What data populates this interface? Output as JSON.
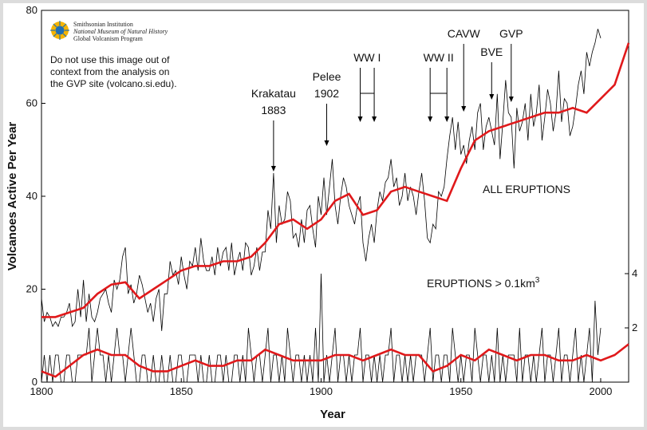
{
  "logo": {
    "line1": "Smithsonian Institution",
    "line2": "National Museum of Natural History",
    "line3": "Global Volcanism Program"
  },
  "disclaimer": [
    "Do not use this image out of",
    "context from the analysis on",
    "the GVP site (volcano.si.edu)."
  ],
  "chart_data": {
    "type": "line",
    "title": "",
    "xlabel": "Year",
    "ylabel": "Volcanoes Active Per Year",
    "xlim": [
      1800,
      2010
    ],
    "ylim": [
      0,
      80
    ],
    "y2lim": [
      0,
      8
    ],
    "xticks": [
      1800,
      1850,
      1900,
      1950,
      2000
    ],
    "yticks": [
      0,
      20,
      40,
      60,
      80
    ],
    "y2ticks": [
      2,
      4
    ],
    "grid": false,
    "colors": {
      "raw": "#000000",
      "smooth": "#e0191b"
    },
    "series_labels": {
      "all": "ALL ERUPTIONS",
      "large_prefix": "ERUPTIONS > 0.1km",
      "large_sup": "3"
    },
    "all_eruptions_smoothed": {
      "x": [
        1800,
        1805,
        1810,
        1815,
        1820,
        1825,
        1830,
        1835,
        1840,
        1845,
        1850,
        1855,
        1860,
        1865,
        1870,
        1875,
        1880,
        1885,
        1890,
        1895,
        1900,
        1905,
        1910,
        1915,
        1920,
        1925,
        1930,
        1935,
        1940,
        1945,
        1950,
        1955,
        1960,
        1965,
        1970,
        1975,
        1980,
        1985,
        1990,
        1995,
        2000,
        2005,
        2010
      ],
      "values": [
        14,
        14,
        15,
        16,
        19,
        21,
        21.5,
        18,
        20,
        22,
        24,
        25,
        25,
        26,
        26,
        27,
        30,
        34,
        35,
        33,
        35,
        39,
        40.5,
        36,
        37,
        41,
        42,
        41,
        40,
        39,
        46,
        52,
        54,
        55,
        56,
        57,
        58,
        58,
        59,
        58,
        61,
        64,
        73
      ]
    },
    "all_eruptions_annual": {
      "x0": 1800,
      "values": [
        18,
        13,
        15,
        14,
        12,
        13,
        12,
        14,
        14,
        15,
        17,
        12,
        13,
        20,
        14,
        22,
        13,
        19,
        14,
        13,
        15,
        18,
        19,
        20,
        17,
        15,
        22,
        20,
        22,
        27,
        29,
        19,
        21,
        17,
        19,
        23,
        21,
        18,
        15,
        17,
        13,
        18,
        20,
        11,
        19,
        19,
        26,
        23,
        24,
        21,
        27,
        23,
        20,
        26,
        25,
        29,
        24,
        31,
        26,
        24,
        24,
        27,
        23,
        29,
        25,
        28,
        29,
        24,
        30,
        23,
        26,
        28,
        24,
        30,
        29,
        23,
        25,
        29,
        24,
        28,
        28,
        37,
        33,
        45,
        30,
        38,
        34,
        35,
        41,
        39,
        31,
        32,
        29,
        35,
        30,
        37,
        38,
        33,
        29,
        40,
        36,
        44,
        36,
        42,
        48,
        38,
        34,
        40,
        44,
        42,
        38,
        36,
        34,
        38,
        40,
        30,
        26,
        31,
        34,
        30,
        37,
        41,
        39,
        43,
        44,
        48,
        42,
        44,
        38,
        40,
        45,
        39,
        42,
        40,
        36,
        41,
        45,
        39,
        31,
        30,
        34,
        33,
        41,
        40,
        42,
        48,
        53,
        57,
        50,
        56,
        49,
        51,
        47,
        52,
        55,
        50,
        58,
        60,
        50,
        55,
        57,
        54,
        51,
        62,
        48,
        56,
        65,
        58,
        57,
        46,
        59,
        54,
        56,
        60,
        52,
        62,
        55,
        58,
        64,
        52,
        57,
        63,
        60,
        54,
        58,
        67,
        56,
        61,
        60,
        53,
        55,
        59,
        64,
        67,
        62,
        71,
        68,
        71,
        73,
        76,
        74
      ]
    },
    "large_eruptions_smoothed": {
      "x": [
        1800,
        1805,
        1810,
        1815,
        1820,
        1825,
        1830,
        1835,
        1840,
        1845,
        1850,
        1855,
        1860,
        1865,
        1870,
        1875,
        1880,
        1885,
        1890,
        1895,
        1900,
        1905,
        1910,
        1915,
        1920,
        1925,
        1930,
        1935,
        1940,
        1945,
        1950,
        1955,
        1960,
        1965,
        1970,
        1975,
        1980,
        1985,
        1990,
        1995,
        2000,
        2005,
        2010
      ],
      "values": [
        0.2,
        0.1,
        0.3,
        0.5,
        0.6,
        0.5,
        0.5,
        0.3,
        0.2,
        0.2,
        0.3,
        0.4,
        0.3,
        0.3,
        0.4,
        0.4,
        0.6,
        0.5,
        0.4,
        0.4,
        0.4,
        0.5,
        0.5,
        0.4,
        0.5,
        0.6,
        0.5,
        0.5,
        0.2,
        0.3,
        0.5,
        0.4,
        0.6,
        0.5,
        0.4,
        0.5,
        0.5,
        0.4,
        0.4,
        0.5,
        0.4,
        0.5,
        0.7
      ]
    },
    "large_eruptions_annual": {
      "x0": 1800,
      "values": [
        0,
        1,
        0,
        1,
        0,
        1,
        1,
        0,
        0,
        1,
        1,
        0,
        0,
        1,
        1,
        1,
        1,
        2,
        0,
        1,
        2,
        1,
        1,
        0,
        1,
        0,
        1,
        2,
        1,
        1,
        0,
        1,
        2,
        1,
        0,
        0,
        1,
        1,
        0,
        0,
        1,
        0,
        0,
        1,
        0,
        0,
        1,
        0,
        0,
        1,
        1,
        0,
        0,
        1,
        1,
        1,
        0,
        1,
        0,
        0,
        1,
        0,
        0,
        1,
        1,
        0,
        1,
        0,
        0,
        1,
        1,
        0,
        1,
        0,
        2,
        1,
        0,
        1,
        1,
        0,
        1,
        2,
        0,
        1,
        1,
        0,
        1,
        0,
        2,
        1,
        0,
        1,
        1,
        0,
        1,
        0,
        1,
        0,
        2,
        0,
        4,
        0,
        1,
        0,
        1,
        2,
        0,
        1,
        1,
        0,
        1,
        0,
        1,
        1,
        2,
        0,
        1,
        1,
        0,
        1,
        0,
        1,
        0,
        1,
        1,
        2,
        0,
        1,
        1,
        0,
        1,
        0,
        1,
        0,
        1,
        1,
        1,
        0,
        1,
        2,
        0,
        1,
        1,
        0,
        1,
        1,
        0,
        2,
        1,
        0,
        1,
        0,
        1,
        1,
        0,
        2,
        1,
        0,
        1,
        1,
        0,
        1,
        0,
        2,
        0,
        1,
        0,
        1,
        1,
        1,
        0,
        2,
        0,
        1,
        1,
        0,
        1,
        0,
        1,
        2,
        0,
        1,
        1,
        0,
        1,
        2,
        0,
        1,
        1,
        0,
        1,
        2,
        0,
        1,
        0,
        1,
        2,
        0,
        3,
        1,
        2
      ]
    },
    "annotations": [
      {
        "line1": "Krakatau",
        "line2": "1883",
        "arrows": [
          1883
        ]
      },
      {
        "line1": "Pelee",
        "line2": "1902",
        "arrows": [
          1902
        ]
      },
      {
        "line1": "WW I",
        "line2": "",
        "arrows": [
          1914,
          1919
        ]
      },
      {
        "line1": "WW II",
        "line2": "",
        "arrows": [
          1939,
          1945
        ]
      },
      {
        "line1": "CAVW",
        "line2": "",
        "arrows": [
          1951
        ]
      },
      {
        "line1": "BVE",
        "line2": "",
        "arrows": [
          1961
        ]
      },
      {
        "line1": "GVP",
        "line2": "",
        "arrows": [
          1968
        ]
      }
    ]
  }
}
